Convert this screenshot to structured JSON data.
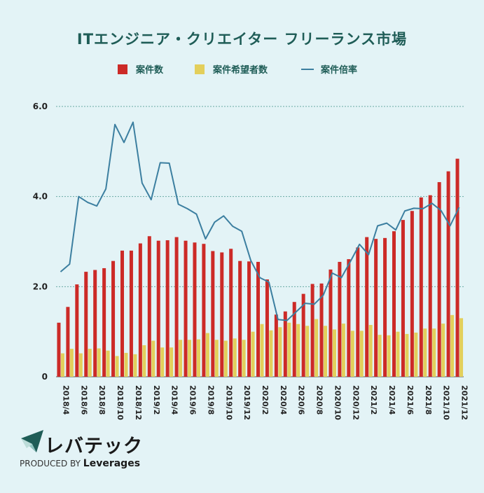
{
  "chart_data": {
    "type": "bar",
    "title": "ITエンジニア・クリエイター フリーランス市場",
    "legend": {
      "position": "top",
      "entries": [
        "案件数",
        "案件希望者数",
        "案件倍率"
      ]
    },
    "ylim": [
      0,
      6
    ],
    "y_ticks": [
      "0",
      "2.0",
      "4.0",
      "6.0"
    ],
    "grid": true,
    "categories": [
      "2018/4",
      "2018/5",
      "2018/6",
      "2018/7",
      "2018/8",
      "2018/9",
      "2018/10",
      "2018/11",
      "2018/12",
      "2019/1",
      "2019/2",
      "2019/3",
      "2019/4",
      "2019/5",
      "2019/6",
      "2019/7",
      "2019/8",
      "2019/9",
      "2019/10",
      "2019/11",
      "2019/12",
      "2020/1",
      "2020/2",
      "2020/3",
      "2020/4",
      "2020/5",
      "2020/6",
      "2020/7",
      "2020/8",
      "2020/9",
      "2020/10",
      "2020/11",
      "2020/12",
      "2021/1",
      "2021/2",
      "2021/3",
      "2021/4",
      "2021/5",
      "2021/6",
      "2021/7",
      "2021/8",
      "2021/9",
      "2021/10",
      "2021/11",
      "2021/12"
    ],
    "x_tick_labels": [
      "2018/4",
      "2018/6",
      "2018/8",
      "2018/10",
      "2018/12",
      "2019/2",
      "2019/4",
      "2019/6",
      "2019/8",
      "2019/10",
      "2019/12",
      "2020/2",
      "2020/4",
      "2020/6",
      "2020/8",
      "2020/10",
      "2020/12",
      "2021/2",
      "2021/4",
      "2021/6",
      "2021/8",
      "2021/10",
      "2021/12"
    ],
    "series": [
      {
        "name": "案件数",
        "kind": "bar",
        "color": "#cc2a27",
        "values": [
          1.2,
          1.55,
          2.05,
          2.33,
          2.37,
          2.41,
          2.57,
          2.8,
          2.8,
          2.96,
          3.12,
          3.02,
          3.03,
          3.1,
          3.02,
          2.98,
          2.95,
          2.79,
          2.76,
          2.84,
          2.57,
          2.56,
          2.55,
          2.16,
          1.38,
          1.45,
          1.66,
          1.84,
          2.06,
          2.07,
          2.38,
          2.55,
          2.61,
          2.87,
          3.1,
          3.06,
          3.08,
          3.23,
          3.48,
          3.68,
          3.98,
          4.03,
          4.32,
          4.56,
          4.84
        ]
      },
      {
        "name": "案件希望者数",
        "kind": "bar",
        "color": "#e3cf5b",
        "values": [
          0.52,
          0.62,
          0.52,
          0.62,
          0.63,
          0.58,
          0.46,
          0.53,
          0.5,
          0.7,
          0.8,
          0.65,
          0.65,
          0.82,
          0.82,
          0.83,
          0.97,
          0.82,
          0.8,
          0.85,
          0.82,
          1.0,
          1.17,
          1.03,
          1.1,
          1.2,
          1.17,
          1.13,
          1.28,
          1.13,
          1.05,
          1.18,
          1.02,
          1.02,
          1.15,
          0.93,
          0.92,
          1.0,
          0.95,
          0.98,
          1.07,
          1.07,
          1.18,
          1.37,
          1.3
        ]
      },
      {
        "name": "案件倍率",
        "kind": "line",
        "color": "#3c7fa0",
        "values": [
          2.33,
          2.5,
          4.0,
          3.87,
          3.79,
          4.17,
          5.6,
          5.2,
          5.65,
          4.3,
          3.93,
          4.75,
          4.74,
          3.83,
          3.73,
          3.61,
          3.06,
          3.43,
          3.57,
          3.34,
          3.23,
          2.58,
          2.2,
          2.1,
          1.27,
          1.25,
          1.44,
          1.63,
          1.61,
          1.81,
          2.3,
          2.2,
          2.56,
          2.94,
          2.71,
          3.35,
          3.41,
          3.26,
          3.68,
          3.74,
          3.73,
          3.85,
          3.69,
          3.35,
          3.76
        ]
      }
    ]
  },
  "brand": {
    "name": "レバテック",
    "tagline_prefix": "PRODUCED BY",
    "tagline_company": "Leverages"
  }
}
